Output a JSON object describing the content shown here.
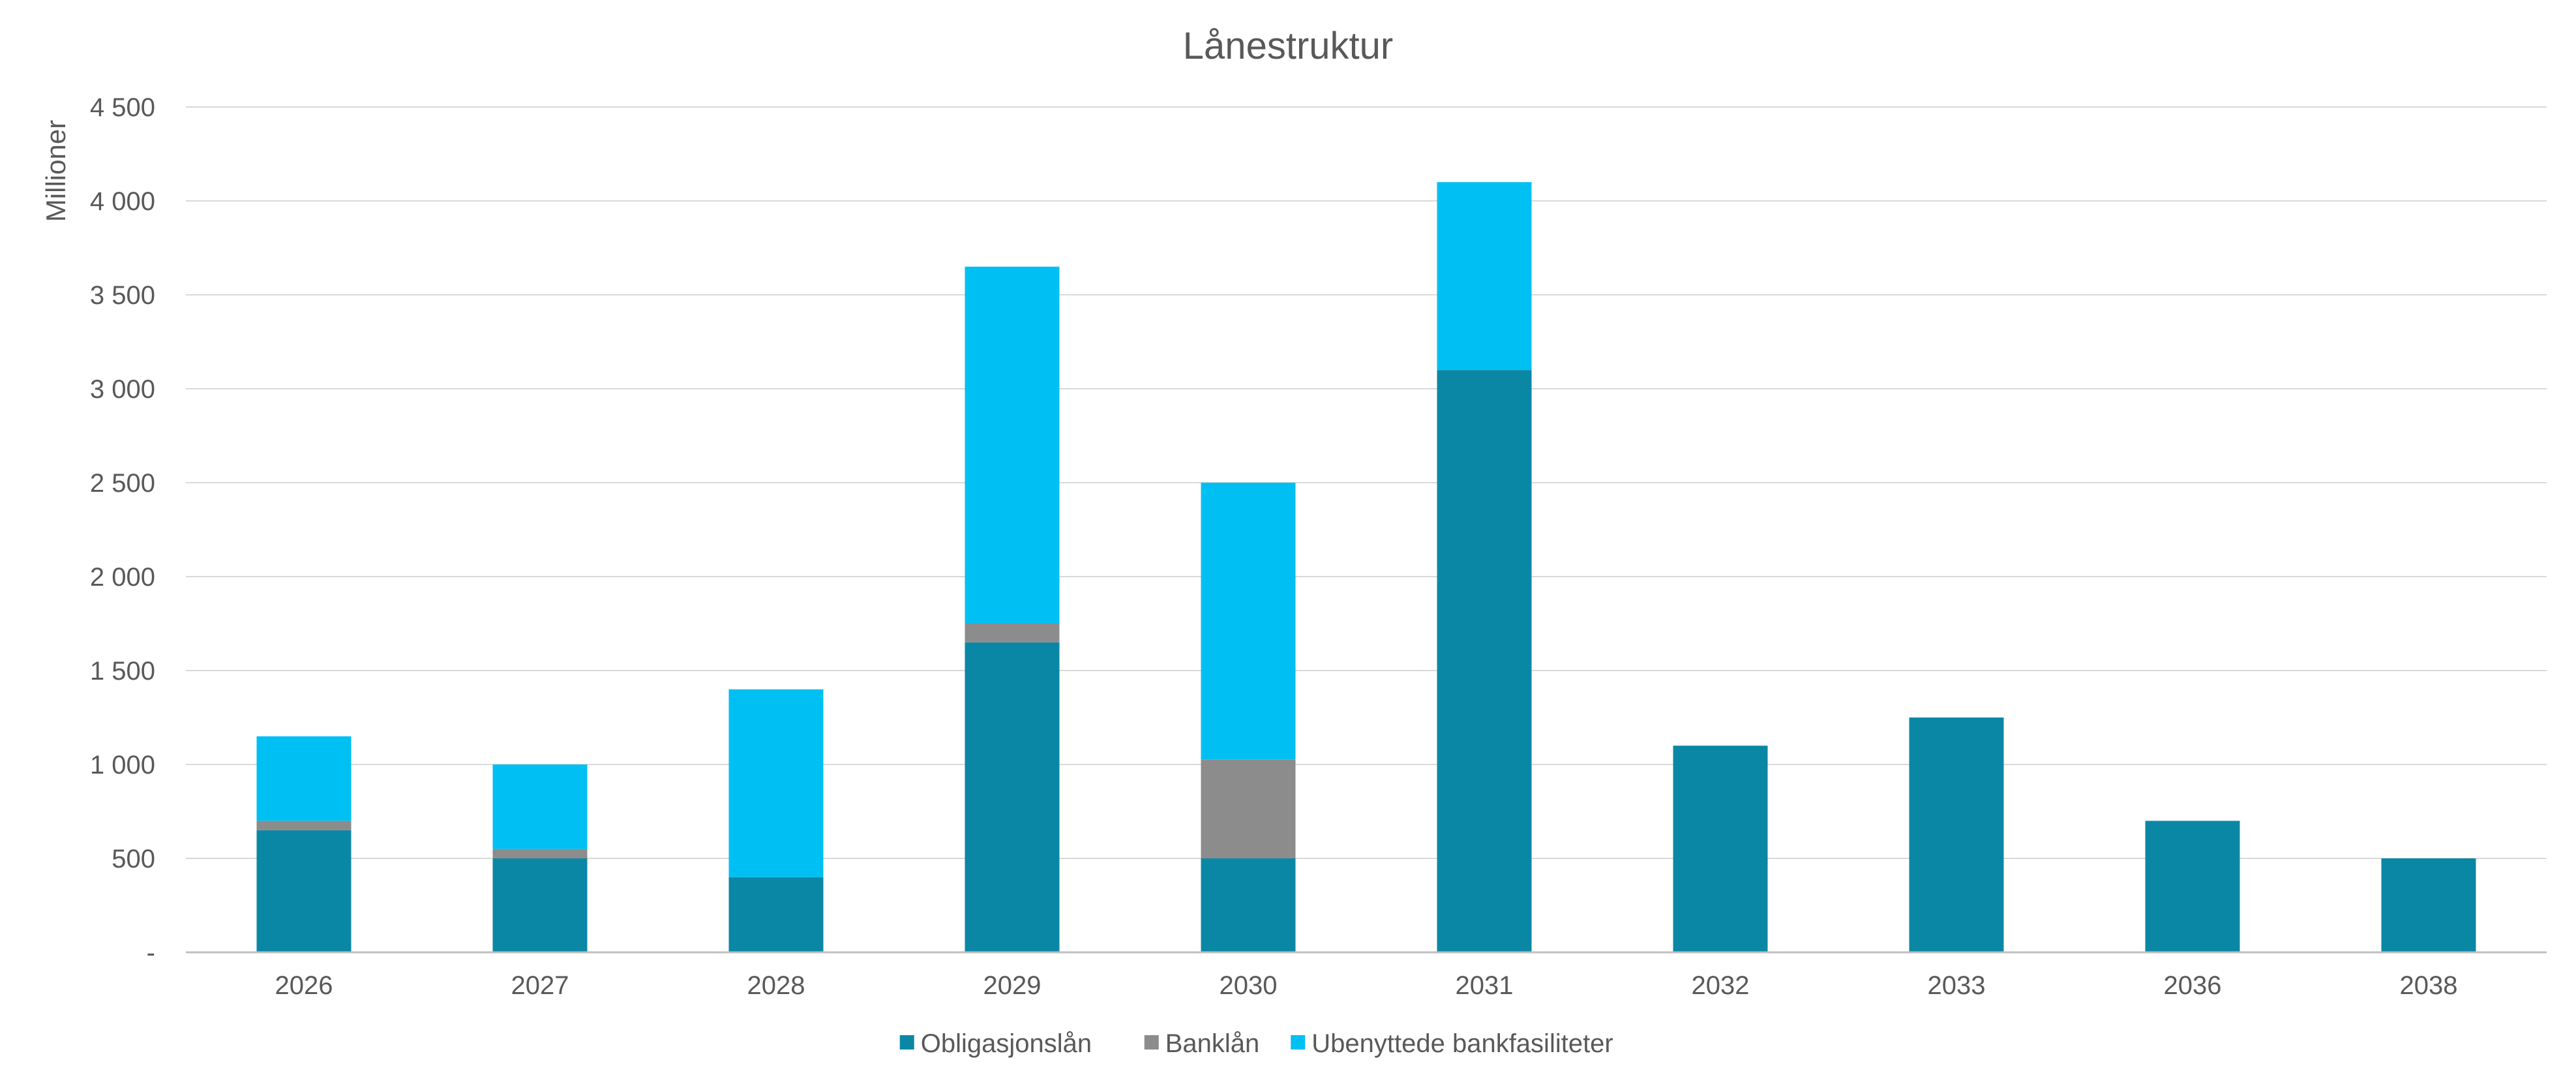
{
  "chart_data": {
    "type": "bar",
    "stacked": true,
    "title": "Lånestruktur",
    "xlabel": "",
    "ylabel": "Millioner",
    "categories": [
      "2026",
      "2027",
      "2028",
      "2029",
      "2030",
      "2031",
      "2032",
      "2033",
      "2036",
      "2038"
    ],
    "series": [
      {
        "name": "Obligasjonslån",
        "color": "#0b87a6",
        "values": [
          650,
          500,
          400,
          1650,
          500,
          3100,
          1100,
          1250,
          700,
          500
        ]
      },
      {
        "name": "Banklån",
        "color": "#8c8c8c",
        "values": [
          50,
          50,
          0,
          100,
          525,
          0,
          0,
          0,
          0,
          0
        ]
      },
      {
        "name": "Ubenyttede bankfasiliteter",
        "color": "#00c0f3",
        "values": [
          450,
          450,
          1000,
          1900,
          1475,
          1000,
          0,
          0,
          0,
          0
        ]
      }
    ],
    "ylim": [
      0,
      4500
    ],
    "yticks": [
      0,
      500,
      1000,
      1500,
      2000,
      2500,
      3000,
      3500,
      4000,
      4500
    ],
    "ytick_labels": [
      "-",
      "500",
      "1 000",
      "1 500",
      "2 000",
      "2 500",
      "3 000",
      "3 500",
      "4 000",
      "4 500"
    ],
    "grid": true,
    "legend_position": "bottom",
    "colors": {
      "gridline": "#d9d9d9",
      "axis": "#bfbfbf",
      "text": "#595959"
    }
  }
}
